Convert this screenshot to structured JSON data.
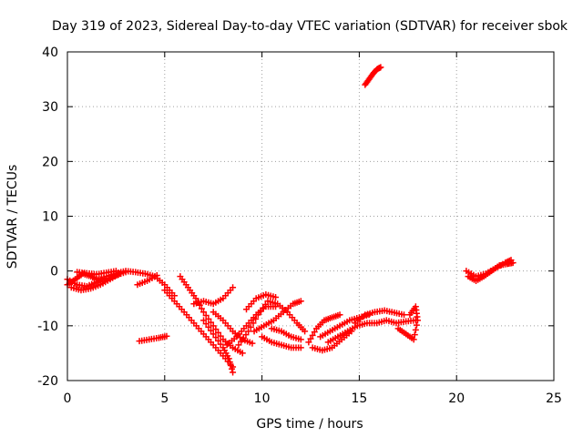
{
  "chart_data": {
    "type": "scatter",
    "title": "Day 319 of 2023, Sidereal Day-to-day VTEC variation (SDTVAR) for receiver sbok",
    "xlabel": "GPS time / hours",
    "ylabel": "SDTVAR / TECUs",
    "xlim": [
      0,
      25
    ],
    "ylim": [
      -20,
      40
    ],
    "xticks": [
      0,
      5,
      10,
      15,
      20,
      25
    ],
    "yticks": [
      -20,
      -10,
      0,
      10,
      20,
      30,
      40
    ],
    "xtick_labels": [
      "0",
      "5",
      "10",
      "15",
      "20",
      "25"
    ],
    "ytick_labels": [
      "-20",
      "-10",
      "0",
      "10",
      "20",
      "30",
      "40"
    ],
    "grid": true,
    "marker": "plus",
    "color": "#ff0000",
    "tracks": [
      {
        "name": "t1",
        "points": [
          [
            0,
            -1.5
          ],
          [
            0.5,
            -2.5
          ],
          [
            1,
            -2.8
          ],
          [
            1.5,
            -2
          ],
          [
            2,
            -1
          ],
          [
            2.5,
            -0.4
          ],
          [
            3,
            0
          ],
          [
            3.5,
            -0.2
          ],
          [
            4,
            -0.5
          ],
          [
            4.5,
            -1
          ],
          [
            5,
            -2.5
          ],
          [
            5.5,
            -4.5
          ]
        ]
      },
      {
        "name": "t2",
        "points": [
          [
            0,
            -2.5
          ],
          [
            0.4,
            -1.5
          ],
          [
            0.8,
            -0.5
          ],
          [
            1.2,
            -1
          ],
          [
            1.6,
            -1.6
          ],
          [
            2,
            -1.5
          ],
          [
            2.5,
            -0.8
          ],
          [
            3,
            -0.2
          ]
        ]
      },
      {
        "name": "t3",
        "points": [
          [
            0.2,
            -3
          ],
          [
            0.7,
            -3.5
          ],
          [
            1.2,
            -3.2
          ],
          [
            1.7,
            -2.5
          ],
          [
            2.2,
            -1.5
          ],
          [
            2.7,
            -0.5
          ]
        ]
      },
      {
        "name": "t4",
        "points": [
          [
            0.5,
            -0.2
          ],
          [
            1,
            -0.4
          ],
          [
            1.5,
            -0.6
          ],
          [
            2,
            -0.3
          ],
          [
            2.5,
            0
          ]
        ]
      },
      {
        "name": "t5",
        "points": [
          [
            3.6,
            -2.5
          ],
          [
            4.1,
            -1.8
          ],
          [
            4.6,
            -0.8
          ]
        ]
      },
      {
        "name": "t6",
        "points": [
          [
            3.7,
            -12.8
          ],
          [
            4.2,
            -12.5
          ],
          [
            4.7,
            -12.2
          ],
          [
            5.1,
            -11.9
          ]
        ]
      },
      {
        "name": "t7",
        "points": [
          [
            5,
            -3.5
          ],
          [
            5.5,
            -5.5
          ],
          [
            6,
            -7.5
          ],
          [
            6.5,
            -9.5
          ],
          [
            7,
            -11.5
          ],
          [
            7.5,
            -13.5
          ],
          [
            8,
            -15.5
          ],
          [
            8.5,
            -17.5
          ]
        ]
      },
      {
        "name": "t8",
        "points": [
          [
            5.8,
            -1
          ],
          [
            6.2,
            -3
          ],
          [
            6.6,
            -5
          ],
          [
            7,
            -7.5
          ],
          [
            7.5,
            -10
          ],
          [
            8,
            -12.5
          ],
          [
            8.5,
            -14
          ],
          [
            9,
            -15
          ]
        ]
      },
      {
        "name": "t9",
        "points": [
          [
            6.5,
            -6
          ],
          [
            7,
            -5.5
          ],
          [
            7.5,
            -6
          ],
          [
            8,
            -5
          ],
          [
            8.5,
            -3
          ]
        ]
      },
      {
        "name": "t10",
        "points": [
          [
            7,
            -9
          ],
          [
            7.5,
            -11.5
          ],
          [
            8,
            -14
          ],
          [
            8.3,
            -16
          ],
          [
            8.5,
            -18.5
          ]
        ]
      },
      {
        "name": "t11",
        "points": [
          [
            7.5,
            -7.5
          ],
          [
            8,
            -9
          ],
          [
            8.5,
            -11
          ],
          [
            9,
            -12.5
          ],
          [
            9.5,
            -13.2
          ]
        ]
      },
      {
        "name": "t12",
        "points": [
          [
            8.2,
            -13.5
          ],
          [
            8.7,
            -12
          ],
          [
            9.2,
            -10
          ],
          [
            9.7,
            -8
          ],
          [
            10.2,
            -6.5
          ],
          [
            10.7,
            -6.5
          ]
        ]
      },
      {
        "name": "t13",
        "points": [
          [
            8.8,
            -13.5
          ],
          [
            9.3,
            -11
          ],
          [
            9.8,
            -8
          ],
          [
            10.3,
            -5.5
          ],
          [
            10.8,
            -6
          ],
          [
            11.3,
            -7.5
          ],
          [
            11.8,
            -9.5
          ],
          [
            12.2,
            -11
          ]
        ]
      },
      {
        "name": "t14",
        "points": [
          [
            9.2,
            -7
          ],
          [
            9.7,
            -5
          ],
          [
            10.2,
            -4.3
          ],
          [
            10.7,
            -4.8
          ]
        ]
      },
      {
        "name": "t15",
        "points": [
          [
            9.6,
            -11
          ],
          [
            10.1,
            -10
          ],
          [
            10.6,
            -9
          ],
          [
            11.1,
            -7.5
          ],
          [
            11.6,
            -6
          ],
          [
            12,
            -5.5
          ]
        ]
      },
      {
        "name": "t16",
        "points": [
          [
            10,
            -12
          ],
          [
            10.5,
            -13
          ],
          [
            11,
            -13.5
          ],
          [
            11.5,
            -14
          ],
          [
            12,
            -14
          ]
        ]
      },
      {
        "name": "t17",
        "points": [
          [
            10.5,
            -10.5
          ],
          [
            11,
            -11
          ],
          [
            11.5,
            -12
          ],
          [
            12,
            -12.5
          ]
        ]
      },
      {
        "name": "t18",
        "points": [
          [
            12.4,
            -13
          ],
          [
            12.8,
            -10.5
          ],
          [
            13.2,
            -9
          ],
          [
            13.6,
            -8.5
          ],
          [
            14,
            -8
          ]
        ]
      },
      {
        "name": "t19",
        "points": [
          [
            12.6,
            -14
          ],
          [
            13.1,
            -14.5
          ],
          [
            13.6,
            -14
          ],
          [
            14.1,
            -12.5
          ],
          [
            14.6,
            -11
          ]
        ]
      },
      {
        "name": "t20",
        "points": [
          [
            13,
            -12
          ],
          [
            13.5,
            -11
          ],
          [
            14,
            -10
          ],
          [
            14.5,
            -9
          ],
          [
            15,
            -8.5
          ],
          [
            15.5,
            -8
          ]
        ]
      },
      {
        "name": "t21",
        "points": [
          [
            13.4,
            -13
          ],
          [
            13.9,
            -12
          ],
          [
            14.4,
            -11
          ],
          [
            14.9,
            -10
          ],
          [
            15.4,
            -9.5
          ],
          [
            15.9,
            -9.5
          ],
          [
            16.4,
            -9
          ],
          [
            16.9,
            -9.5
          ],
          [
            17.4,
            -9.2
          ],
          [
            17.9,
            -9
          ]
        ]
      },
      {
        "name": "t22",
        "points": [
          [
            14.8,
            -9.5
          ],
          [
            15.3,
            -8
          ],
          [
            15.8,
            -7.5
          ],
          [
            16.3,
            -7.2
          ],
          [
            16.8,
            -7.6
          ],
          [
            17.3,
            -8
          ]
        ]
      },
      {
        "name": "t23",
        "points": [
          [
            17,
            -10.5
          ],
          [
            17.4,
            -11.5
          ],
          [
            17.8,
            -12.5
          ],
          [
            18,
            -9
          ],
          [
            17.9,
            -6.5
          ],
          [
            17.6,
            -8
          ]
        ]
      },
      {
        "name": "t24",
        "points": [
          [
            15.3,
            34
          ],
          [
            15.5,
            35
          ],
          [
            15.7,
            36
          ],
          [
            15.9,
            36.8
          ],
          [
            16.1,
            37.2
          ]
        ]
      },
      {
        "name": "t25",
        "points": [
          [
            20.5,
            0
          ],
          [
            21,
            -1
          ],
          [
            21.5,
            -0.5
          ],
          [
            22,
            0.5
          ],
          [
            22.5,
            1.5
          ],
          [
            22.8,
            2
          ]
        ]
      },
      {
        "name": "t26",
        "points": [
          [
            20.6,
            -1
          ],
          [
            21,
            -1.8
          ],
          [
            21.4,
            -1
          ],
          [
            21.8,
            0
          ],
          [
            22.2,
            1
          ],
          [
            22.6,
            1.3
          ],
          [
            22.9,
            1.5
          ]
        ]
      }
    ]
  }
}
